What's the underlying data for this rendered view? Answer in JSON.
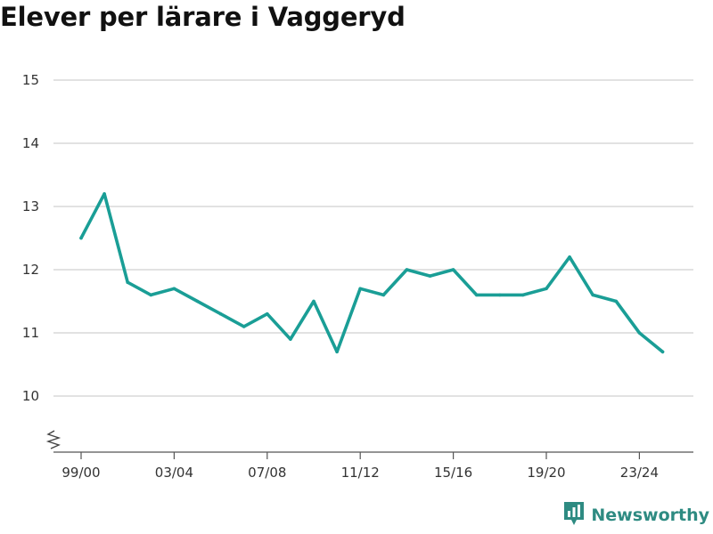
{
  "title": "Elever per lärare i Vaggeryd",
  "brand": {
    "name": "Newsworthy",
    "color": "#2e8b82",
    "icon": "bar-chart-badge-icon"
  },
  "colors": {
    "line": "#1a9e96",
    "grid": "#d9d9d9",
    "axis": "#555555"
  },
  "chart_data": {
    "type": "line",
    "title": "Elever per lärare i Vaggeryd",
    "xlabel": "",
    "ylabel": "",
    "x_tick_labels": [
      "99/00",
      "03/04",
      "07/08",
      "11/12",
      "15/16",
      "19/20",
      "23/24"
    ],
    "y_ticks": [
      10,
      11,
      12,
      13,
      14,
      15
    ],
    "ylim": [
      9.1,
      15
    ],
    "y_axis_break": true,
    "grid": true,
    "x": [
      "99/00",
      "00/01",
      "01/02",
      "02/03",
      "03/04",
      "04/05",
      "05/06",
      "06/07",
      "07/08",
      "08/09",
      "09/10",
      "10/11",
      "11/12",
      "12/13",
      "13/14",
      "14/15",
      "15/16",
      "16/17",
      "17/18",
      "18/19",
      "19/20",
      "20/21",
      "21/22",
      "22/23",
      "23/24",
      "24/25"
    ],
    "series": [
      {
        "values": [
          12.5,
          13.2,
          11.8,
          11.6,
          11.7,
          11.5,
          11.3,
          11.1,
          11.3,
          10.9,
          11.5,
          10.7,
          11.7,
          11.6,
          12.0,
          11.9,
          12.0,
          11.6,
          11.6,
          11.6,
          11.7,
          12.2,
          11.6,
          11.5,
          11.0,
          10.7
        ]
      }
    ]
  }
}
